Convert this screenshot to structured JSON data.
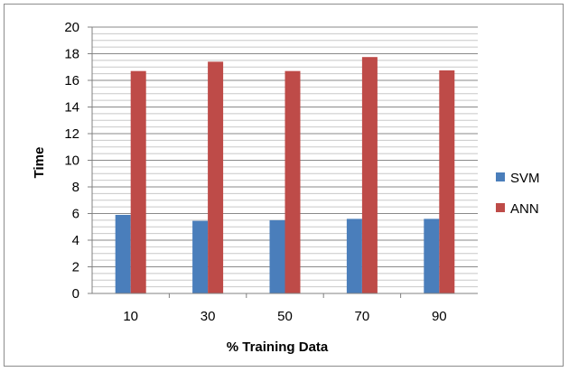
{
  "chart_data": {
    "type": "bar",
    "categories": [
      "10",
      "30",
      "50",
      "70",
      "90"
    ],
    "series": [
      {
        "name": "SVM",
        "values": [
          5.9,
          5.45,
          5.5,
          5.6,
          5.6
        ],
        "color": "#4a7ebb"
      },
      {
        "name": "ANN",
        "values": [
          16.7,
          17.4,
          16.7,
          17.75,
          16.75
        ],
        "color": "#be4b48"
      }
    ],
    "xlabel": "% Training Data",
    "ylabel": "Time",
    "ylim": [
      0,
      20
    ],
    "yticks": [
      0,
      2,
      4,
      6,
      8,
      10,
      12,
      14,
      16,
      18,
      20
    ],
    "grid": true,
    "legend_position": "right"
  }
}
